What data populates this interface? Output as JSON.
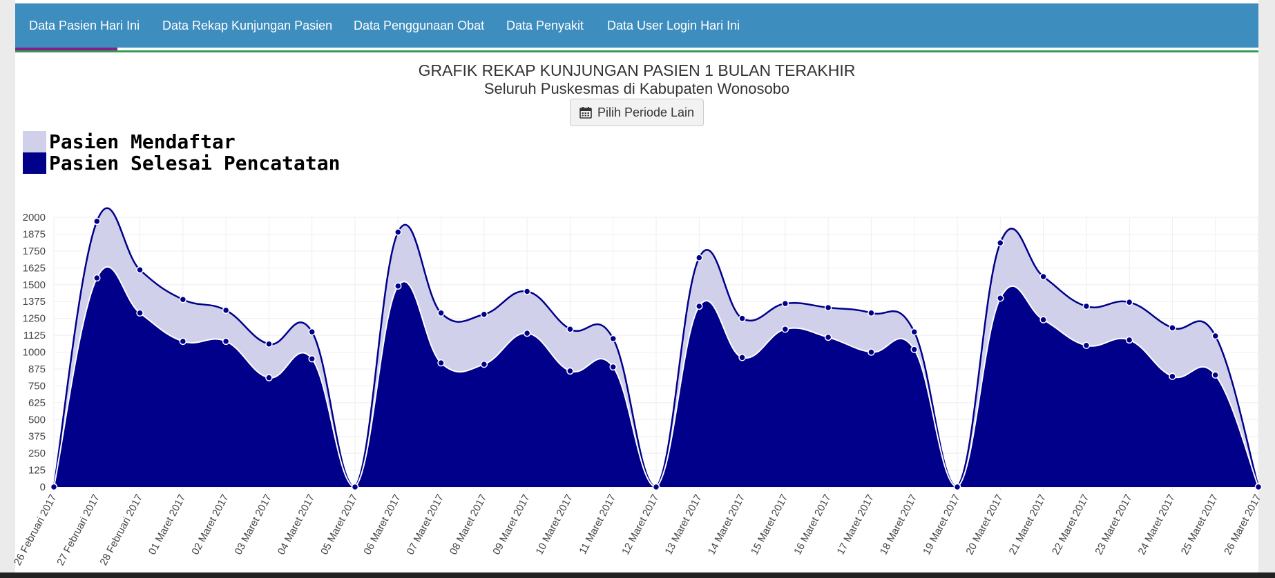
{
  "nav": {
    "items": [
      {
        "label": "Data Pasien Hari Ini",
        "active": true
      },
      {
        "label": "Data Rekap Kunjungan Pasien"
      },
      {
        "label": "Data Penggunaan Obat"
      },
      {
        "label": "Data Penyakit"
      },
      {
        "label": "Data User Login Hari Ini"
      }
    ]
  },
  "header": {
    "title": "GRAFIK REKAP KUNJUNGAN PASIEN 1 BULAN TERAKHIR",
    "subtitle": "Seluruh Puskesmas di Kabupaten Wonosobo",
    "period_button": "Pilih Periode Lain",
    "period_icon": "calendar-icon"
  },
  "colors": {
    "nav_bg": "#3d8dbf",
    "nav_active": "#8b1e8e",
    "nav_underline": "#2e9d4f",
    "series_registered_fill": "#d0d0ea",
    "series_completed_fill": "#00008b",
    "line": "#00008b"
  },
  "chart_data": {
    "type": "area",
    "title": "",
    "xlabel": "",
    "ylabel": "",
    "ylim": [
      0,
      2000
    ],
    "yticks": [
      0,
      125,
      250,
      375,
      500,
      625,
      750,
      875,
      1000,
      1125,
      1250,
      1375,
      1500,
      1625,
      1750,
      1875,
      2000
    ],
    "grid": true,
    "legend_position": "top-left",
    "x": [
      "26 Februari 2017",
      "27 Februari 2017",
      "28 Februari 2017",
      "01 Maret 2017",
      "02 Maret 2017",
      "03 Maret 2017",
      "04 Maret 2017",
      "05 Maret 2017",
      "06 Maret 2017",
      "07 Maret 2017",
      "08 Maret 2017",
      "09 Maret 2017",
      "10 Maret 2017",
      "11 Maret 2017",
      "12 Maret 2017",
      "13 Maret 2017",
      "14 Maret 2017",
      "15 Maret 2017",
      "16 Maret 2017",
      "17 Maret 2017",
      "18 Maret 2017",
      "19 Maret 2017",
      "20 Maret 2017",
      "21 Maret 2017",
      "22 Maret 2017",
      "23 Maret 2017",
      "24 Maret 2017",
      "25 Maret 2017",
      "26 Maret 2017"
    ],
    "series": [
      {
        "name": "Pasien Mendaftar",
        "color": "#d0d0ea",
        "values": [
          0,
          1970,
          1610,
          1390,
          1310,
          1060,
          1150,
          0,
          1890,
          1290,
          1280,
          1450,
          1170,
          1100,
          0,
          1700,
          1250,
          1360,
          1330,
          1290,
          1150,
          0,
          1810,
          1560,
          1340,
          1370,
          1180,
          1120,
          0
        ]
      },
      {
        "name": "Pasien Selesai Pencatatan",
        "color": "#00008b",
        "values": [
          0,
          1550,
          1290,
          1080,
          1080,
          810,
          950,
          0,
          1490,
          920,
          910,
          1140,
          860,
          890,
          0,
          1340,
          960,
          1170,
          1110,
          1000,
          1020,
          0,
          1400,
          1240,
          1050,
          1090,
          820,
          830,
          0
        ]
      }
    ]
  }
}
